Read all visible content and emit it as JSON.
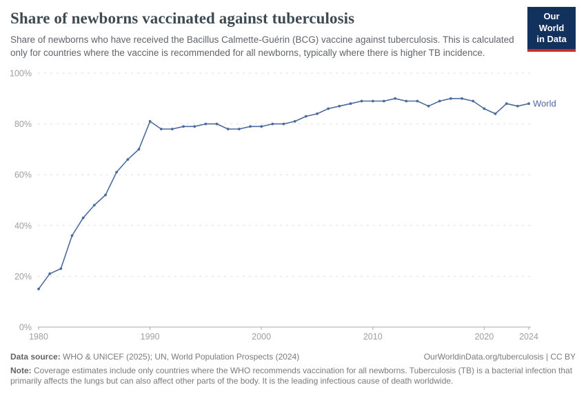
{
  "header": {
    "title": "Share of newborns vaccinated against tuberculosis",
    "subtitle": "Share of newborns who have received the Bacillus Calmette-Guérin (BCG) vaccine against tuberculosis. This is calculated only for countries where the vaccine is recommended for all newborns, typically where there is higher TB incidence.",
    "logo": {
      "line1": "Our World",
      "line2": "in Data",
      "bg_color": "#12315D",
      "accent_color": "#CB2D24"
    }
  },
  "chart_data": {
    "type": "line",
    "title": "Share of newborns vaccinated against tuberculosis",
    "xlabel": "",
    "ylabel": "",
    "xlim": [
      1980,
      2024
    ],
    "ylim": [
      0,
      100
    ],
    "x_ticks": [
      1980,
      1990,
      2000,
      2010,
      2020,
      2024
    ],
    "y_ticks": [
      0,
      20,
      40,
      60,
      80,
      100
    ],
    "y_tick_suffix": "%",
    "grid": "horizontal-dashed",
    "legend_position": "end-of-line-label",
    "colors": {
      "grid": "#dedede",
      "axis": "#a9a9a9",
      "tick_label": "#9e9e9e"
    },
    "series": [
      {
        "name": "World",
        "color": "#4C6A9C",
        "x": [
          1980,
          1981,
          1982,
          1983,
          1984,
          1985,
          1986,
          1987,
          1988,
          1989,
          1990,
          1991,
          1992,
          1993,
          1994,
          1995,
          1996,
          1997,
          1998,
          1999,
          2000,
          2001,
          2002,
          2003,
          2004,
          2005,
          2006,
          2007,
          2008,
          2009,
          2010,
          2011,
          2012,
          2013,
          2014,
          2015,
          2016,
          2017,
          2018,
          2019,
          2020,
          2021,
          2022,
          2023,
          2024
        ],
        "values": [
          15,
          21,
          23,
          36,
          43,
          48,
          52,
          61,
          66,
          70,
          81,
          78,
          78,
          79,
          79,
          80,
          80,
          78,
          78,
          79,
          79,
          80,
          80,
          81,
          83,
          84,
          86,
          87,
          88,
          89,
          89,
          89,
          90,
          89,
          89,
          87,
          89,
          90,
          90,
          89,
          86,
          84,
          88,
          87,
          88
        ]
      }
    ]
  },
  "footer": {
    "datasource_label": "Data source:",
    "datasource_text": " WHO & UNICEF (2025); UN, World Population Prospects (2024)",
    "link": "OurWorldinData.org/tuberculosis | CC BY",
    "note_label": "Note:",
    "note_text": " Coverage estimates include only countries where the WHO recommends vaccination for all newborns. Tuberculosis (TB) is a bacterial infection that primarily affects the lungs but can also affect other parts of the body. It is the leading infectious cause of death worldwide."
  }
}
